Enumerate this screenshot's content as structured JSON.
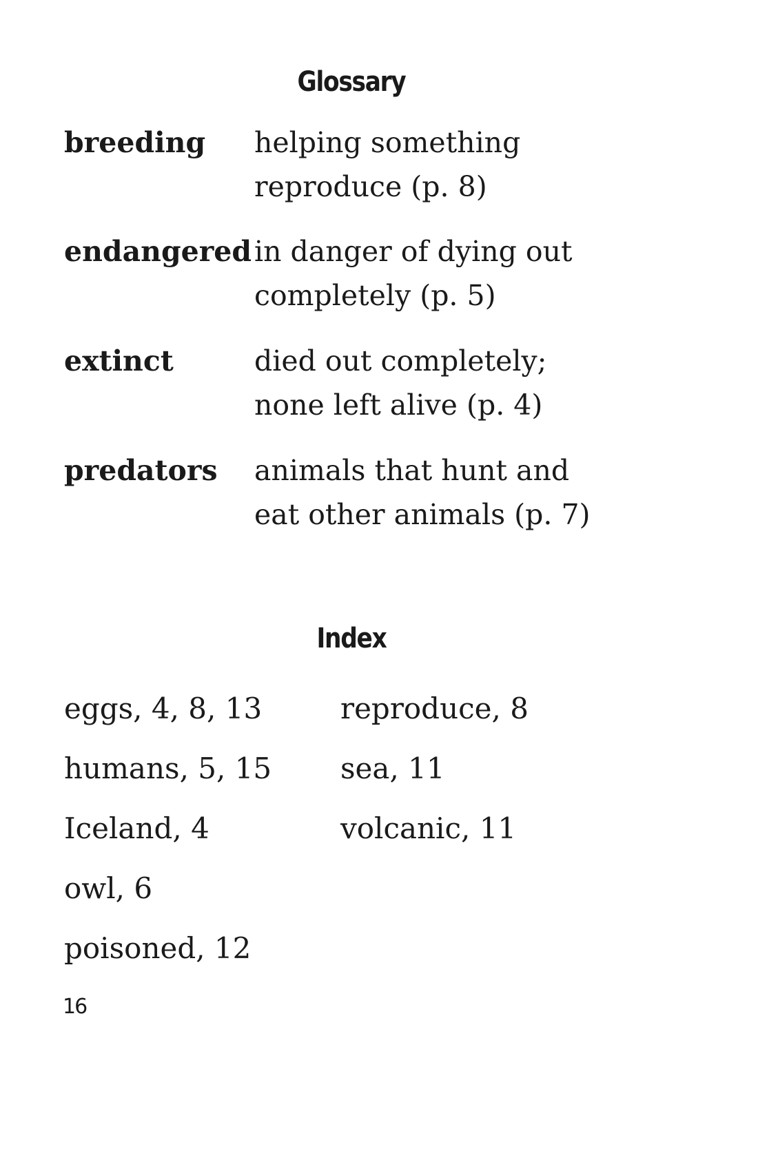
{
  "glossary": {
    "heading": "Glossary",
    "entries": [
      {
        "term": "breeding",
        "definition_lines": [
          "helping something",
          "reproduce (p. 8)"
        ]
      },
      {
        "term": "endangered",
        "definition_lines": [
          "in danger of dying out",
          "completely (p. 5)"
        ]
      },
      {
        "term": "extinct",
        "definition_lines": [
          "died out completely;",
          "none left alive (p. 4)"
        ]
      },
      {
        "term": "predators",
        "definition_lines": [
          "animals that hunt and",
          "eat other animals (p. 7)"
        ]
      }
    ]
  },
  "index": {
    "heading": "Index",
    "left_column": [
      "eggs,  4, 8, 13",
      "humans,  5, 15",
      "Iceland,  4",
      "owl,  6",
      "poisoned,  12"
    ],
    "right_column": [
      "reproduce,  8",
      "sea,  11",
      "volcanic,  11"
    ]
  },
  "page_number": "16"
}
